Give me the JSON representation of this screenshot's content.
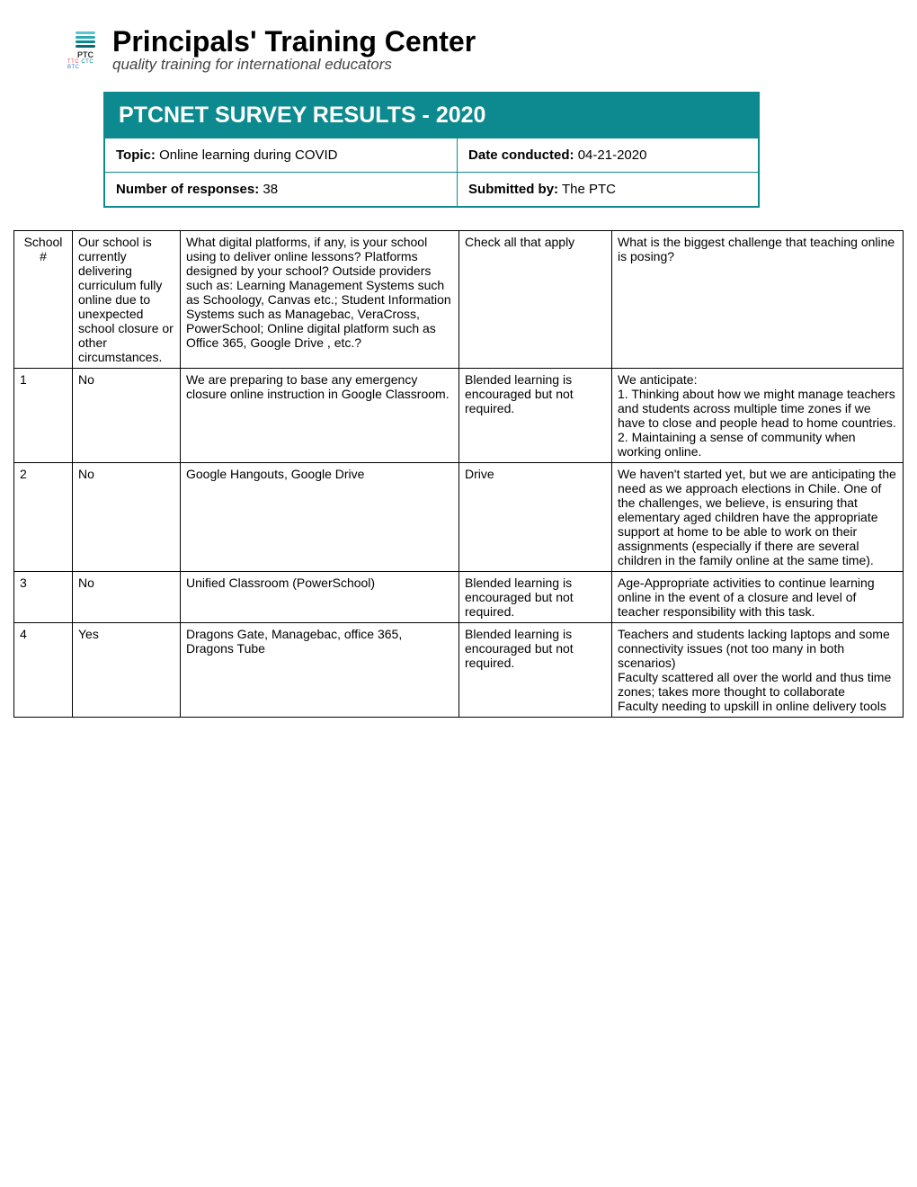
{
  "logo": {
    "title": "Principals' Training Center",
    "subtitle": "quality training for international educators",
    "ptc": "PTC",
    "sub": "TTC CTC BTC"
  },
  "header": {
    "title": "PTCNET SURVEY RESULTS - 2020",
    "topic_label": "Topic:",
    "topic_value": "Online learning during COVID",
    "date_label": "Date conducted:",
    "date_value": "04-21-2020",
    "responses_label": "Number of responses:",
    "responses_value": "38",
    "submitted_label": "Submitted by:",
    "submitted_value": "The PTC"
  },
  "columns": {
    "school": "School #",
    "status": "Our school is currently delivering curriculum fully online due to unexpected school closure or other circumstances.",
    "platforms": "What digital platforms, if any, is your school using to deliver online lessons? Platforms designed by your school? Outside providers such as: Learning Management Systems such as Schoology, Canvas etc.; Student Information Systems such as Managebac, VeraCross, PowerSchool; Online digital platform such as Office 365, Google Drive , etc.?",
    "check": "Check all that apply",
    "challenge": "What is the biggest challenge that teaching online is posing?"
  },
  "rows": [
    {
      "num": "1",
      "status": "No",
      "platforms": "We are preparing to base any emergency closure online instruction in Google Classroom.",
      "check": "Blended learning is encouraged but not required.",
      "challenge": "We anticipate:\n1. Thinking about how we might manage teachers and students across multiple time zones if we have to close and people head to home countries.\n2. Maintaining a sense of community when working online."
    },
    {
      "num": "2",
      "status": "No",
      "platforms": "Google Hangouts, Google Drive",
      "check": "Drive",
      "challenge": "We haven't started yet, but we are anticipating the need as we approach elections in Chile. One of the challenges, we believe, is ensuring that elementary aged children have the appropriate support at home to be able to work on their assignments (especially if there are several children in the family online at the same time)."
    },
    {
      "num": "3",
      "status": "No",
      "platforms": "Unified Classroom (PowerSchool)",
      "check": "Blended learning is encouraged but not required.",
      "challenge": "Age-Appropriate activities to continue learning online in the event of a closure and level of teacher responsibility with this task."
    },
    {
      "num": "4",
      "status": "Yes",
      "platforms": "Dragons Gate, Managebac, office 365, Dragons Tube",
      "check": "Blended learning is encouraged but not required.",
      "challenge": "Teachers and students lacking laptops and some connectivity issues (not too many in both scenarios)\nFaculty scattered all over the world and thus time zones; takes more thought to collaborate\nFaculty needing to upskill in online delivery tools"
    }
  ]
}
